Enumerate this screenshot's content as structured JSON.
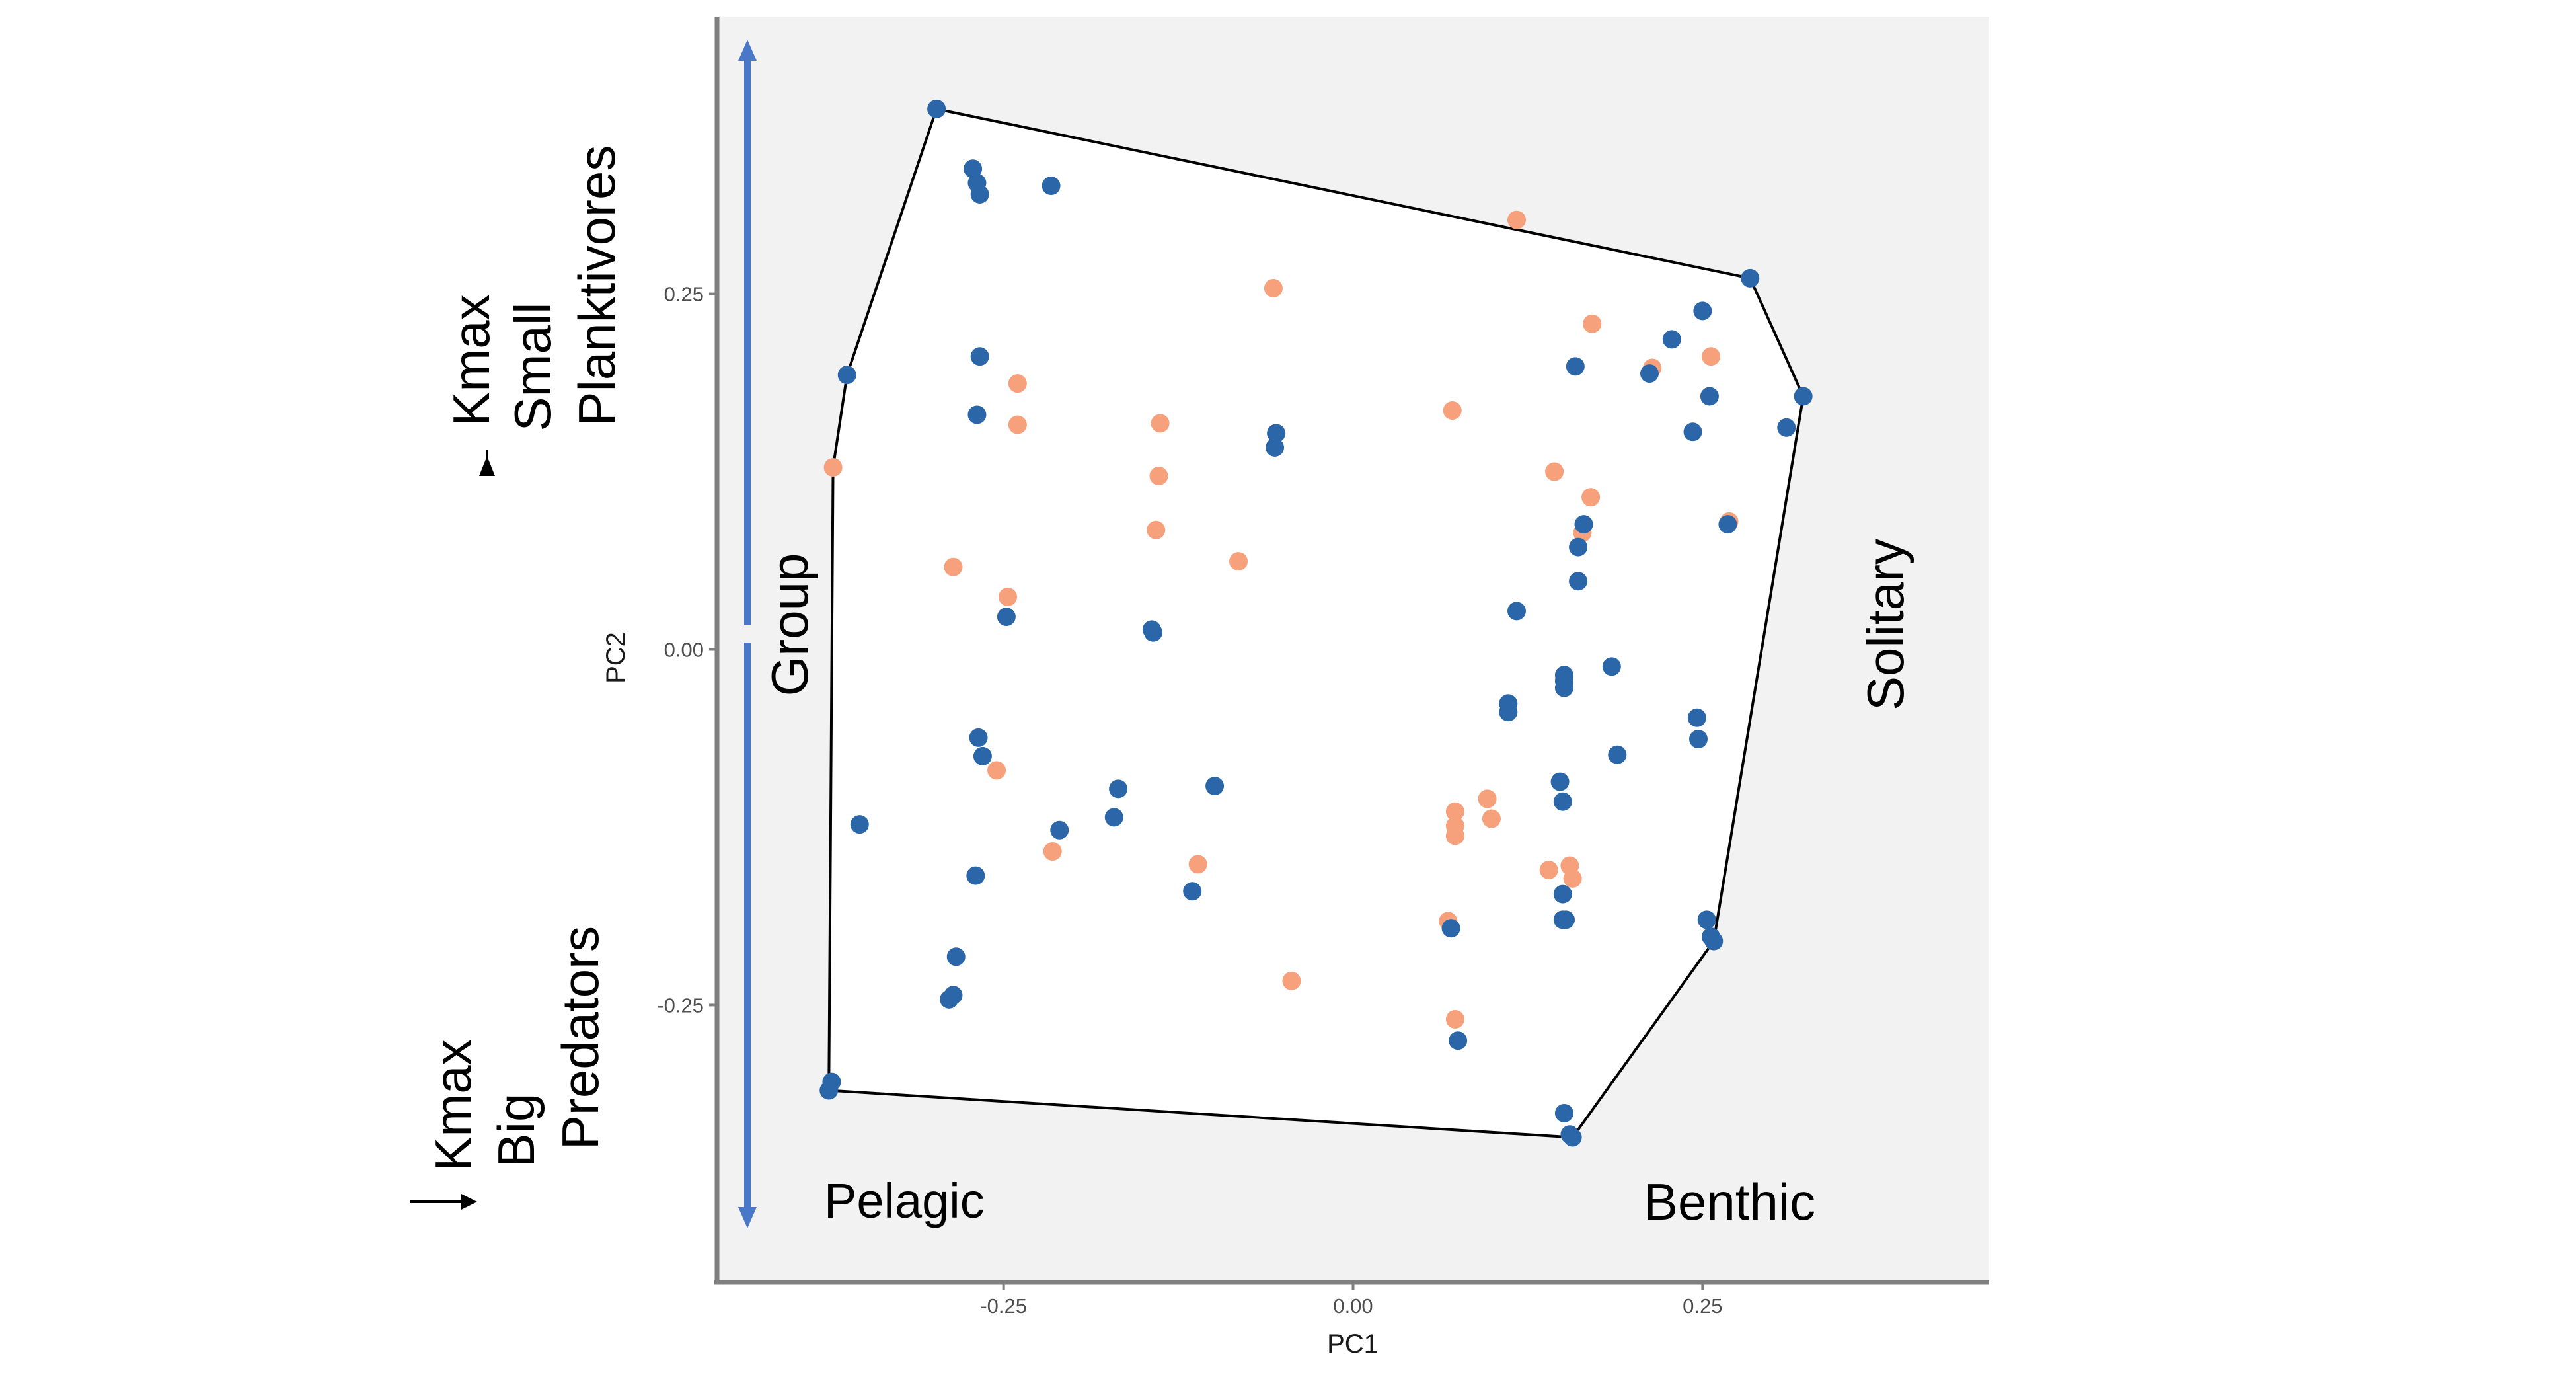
{
  "chart_data": {
    "type": "scatter",
    "title": "",
    "xlabel": "PC1",
    "ylabel": "PC2",
    "xlim": [
      -0.455,
      0.455
    ],
    "ylim": [
      -0.445,
      0.445
    ],
    "x_ticks": [
      {
        "value": -0.25,
        "label": "-0.25"
      },
      {
        "value": 0.0,
        "label": "0.00"
      },
      {
        "value": 0.25,
        "label": "0.25"
      }
    ],
    "y_ticks": [
      {
        "value": 0.25,
        "label": "0.25"
      },
      {
        "value": 0.0,
        "label": "0.00"
      },
      {
        "value": -0.25,
        "label": "-0.25"
      }
    ],
    "grid": false,
    "legend": null,
    "colors": {
      "panel": "#f2f2f2",
      "axis": "#7f7f7f",
      "series_a": "#2b66a9",
      "series_b": "#f7a07c",
      "hull": "#000000",
      "arrow": "#4a78c8"
    },
    "series": [
      {
        "color": "#2b66a9",
        "points": [
          [
            -0.298,
            0.38
          ],
          [
            -0.272,
            0.338
          ],
          [
            -0.269,
            0.328
          ],
          [
            -0.267,
            0.32
          ],
          [
            -0.216,
            0.326
          ],
          [
            -0.267,
            0.206
          ],
          [
            -0.362,
            0.193
          ],
          [
            -0.269,
            0.165
          ],
          [
            -0.055,
            0.152
          ],
          [
            -0.056,
            0.142
          ],
          [
            -0.248,
            0.023
          ],
          [
            -0.144,
            0.014
          ],
          [
            -0.143,
            0.012
          ],
          [
            -0.268,
            -0.062
          ],
          [
            -0.265,
            -0.075
          ],
          [
            -0.168,
            -0.098
          ],
          [
            -0.099,
            -0.096
          ],
          [
            -0.353,
            -0.123
          ],
          [
            -0.171,
            -0.118
          ],
          [
            -0.21,
            -0.127
          ],
          [
            -0.27,
            -0.159
          ],
          [
            -0.115,
            -0.17
          ],
          [
            -0.284,
            -0.216
          ],
          [
            -0.286,
            -0.243
          ],
          [
            -0.289,
            -0.246
          ],
          [
            -0.373,
            -0.304
          ],
          [
            -0.375,
            -0.31
          ],
          [
            0.07,
            -0.196
          ],
          [
            0.075,
            -0.275
          ],
          [
            0.117,
            0.027
          ],
          [
            0.111,
            -0.038
          ],
          [
            0.111,
            -0.044
          ],
          [
            0.151,
            -0.018
          ],
          [
            0.151,
            -0.022
          ],
          [
            0.151,
            -0.027
          ],
          [
            0.185,
            -0.012
          ],
          [
            0.148,
            -0.093
          ],
          [
            0.15,
            -0.107
          ],
          [
            0.189,
            -0.074
          ],
          [
            0.15,
            -0.172
          ],
          [
            0.15,
            -0.19
          ],
          [
            0.152,
            -0.19
          ],
          [
            0.151,
            -0.326
          ],
          [
            0.155,
            -0.341
          ],
          [
            0.157,
            -0.343
          ],
          [
            0.159,
            0.199
          ],
          [
            0.161,
            0.048
          ],
          [
            0.161,
            0.072
          ],
          [
            0.165,
            0.088
          ],
          [
            0.228,
            0.218
          ],
          [
            0.212,
            0.194
          ],
          [
            0.25,
            0.238
          ],
          [
            0.255,
            0.178
          ],
          [
            0.284,
            0.261
          ],
          [
            0.322,
            0.178
          ],
          [
            0.31,
            0.156
          ],
          [
            0.243,
            0.153
          ],
          [
            0.268,
            0.088
          ],
          [
            0.246,
            -0.048
          ],
          [
            0.247,
            -0.063
          ],
          [
            0.253,
            -0.19
          ],
          [
            0.256,
            -0.202
          ],
          [
            0.258,
            -0.205
          ]
        ]
      },
      {
        "color": "#f7a07c",
        "points": [
          [
            0.117,
            0.302
          ],
          [
            -0.057,
            0.254
          ],
          [
            0.171,
            0.229
          ],
          [
            0.256,
            0.206
          ],
          [
            0.214,
            0.198
          ],
          [
            -0.24,
            0.187
          ],
          [
            -0.24,
            0.158
          ],
          [
            -0.138,
            0.159
          ],
          [
            0.071,
            0.168
          ],
          [
            -0.372,
            0.128
          ],
          [
            -0.139,
            0.122
          ],
          [
            0.144,
            0.125
          ],
          [
            0.17,
            0.107
          ],
          [
            -0.141,
            0.084
          ],
          [
            0.164,
            0.082
          ],
          [
            0.269,
            0.09
          ],
          [
            -0.286,
            0.058
          ],
          [
            -0.082,
            0.062
          ],
          [
            -0.247,
            0.037
          ],
          [
            -0.255,
            -0.085
          ],
          [
            0.096,
            -0.105
          ],
          [
            0.073,
            -0.114
          ],
          [
            0.073,
            -0.124
          ],
          [
            0.073,
            -0.131
          ],
          [
            0.099,
            -0.119
          ],
          [
            -0.215,
            -0.142
          ],
          [
            -0.111,
            -0.151
          ],
          [
            0.14,
            -0.155
          ],
          [
            0.155,
            -0.152
          ],
          [
            0.157,
            -0.161
          ],
          [
            0.068,
            -0.191
          ],
          [
            -0.044,
            -0.233
          ],
          [
            0.073,
            -0.26
          ]
        ]
      }
    ],
    "hull": [
      [
        -0.298,
        0.38
      ],
      [
        0.284,
        0.261
      ],
      [
        0.322,
        0.178
      ],
      [
        0.258,
        -0.205
      ],
      [
        0.157,
        -0.343
      ],
      [
        -0.375,
        -0.31
      ],
      [
        -0.372,
        0.128
      ],
      [
        -0.362,
        0.193
      ]
    ],
    "annotations": {
      "pelagic": "Pelagic",
      "benthic": "Benthic",
      "solitary": "Solitary",
      "group": "Group",
      "top_kmax": "Kmax",
      "top_small": "Small",
      "top_planktivores": "Planktivores",
      "bottom_kmax": "Kmax",
      "bottom_big": "Big",
      "bottom_predators": "Predators"
    }
  }
}
